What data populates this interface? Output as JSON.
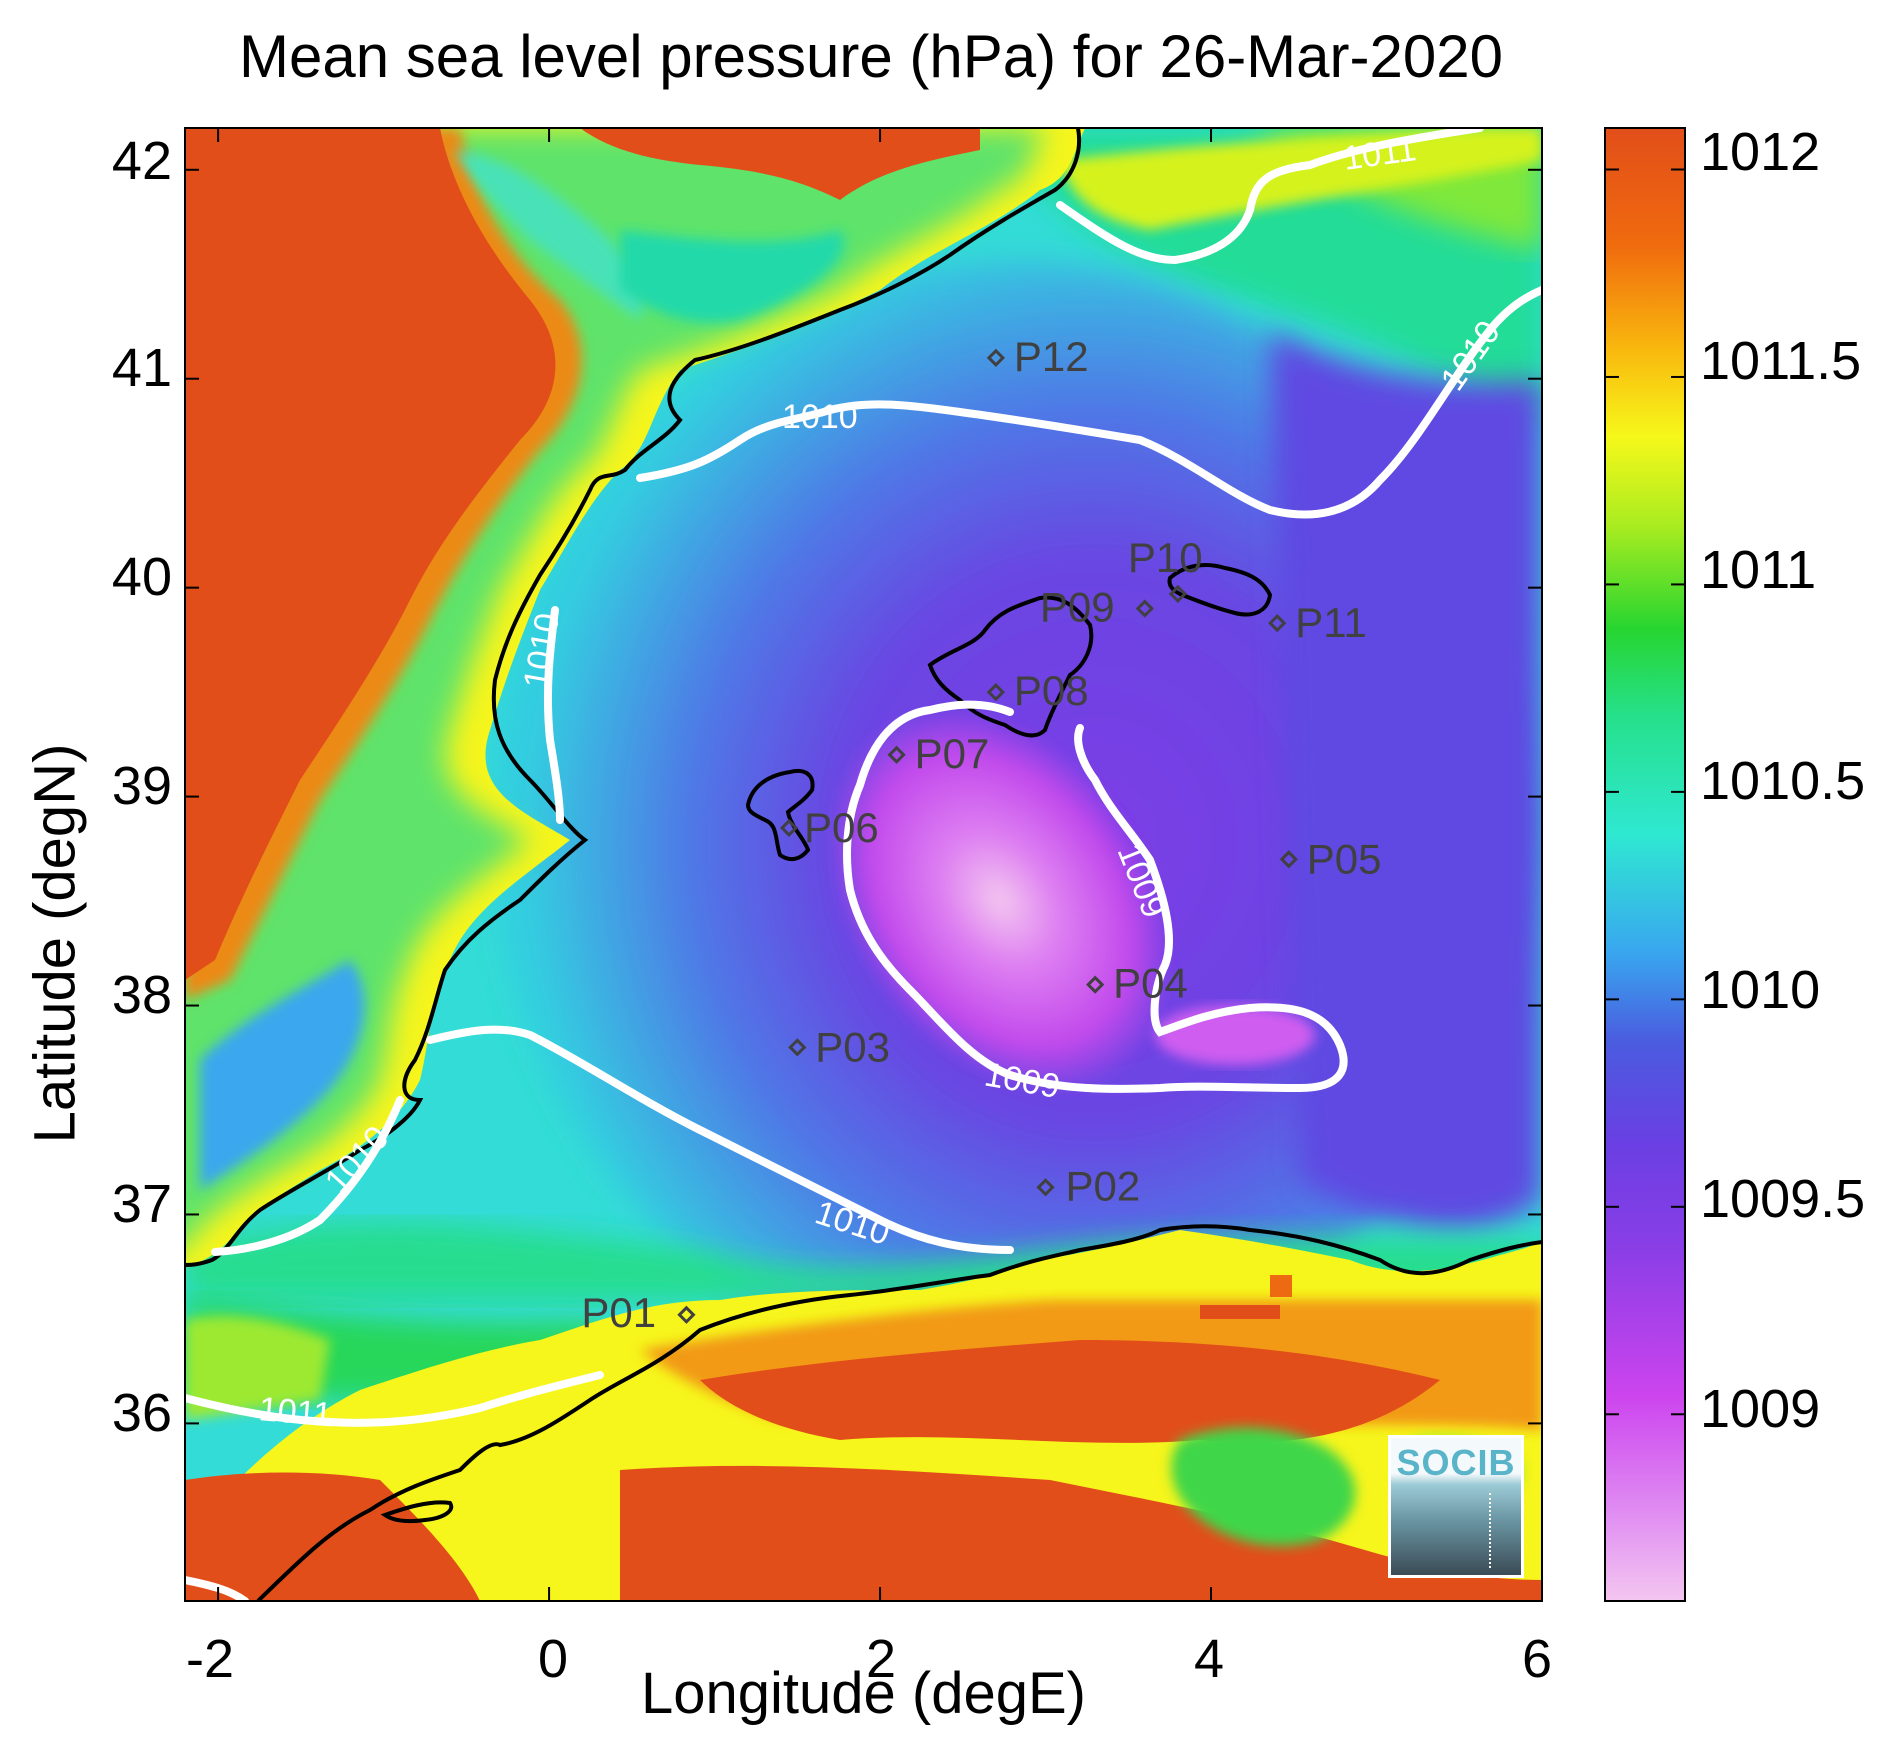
{
  "title": "Mean sea level pressure (hPa) for 26-Mar-2020",
  "xlabel": "Longitude (degE)",
  "ylabel": "Latitude (degN)",
  "x_ticks": [
    "-2",
    "0",
    "2",
    "4",
    "6"
  ],
  "y_ticks": [
    "42",
    "41",
    "40",
    "39",
    "38",
    "37",
    "36"
  ],
  "colorbar_ticks": [
    "1012",
    "1011.5",
    "1011",
    "1010.5",
    "1010",
    "1009.5",
    "1009"
  ],
  "contour_labels": [
    "1011",
    "1010",
    "1010",
    "1010",
    "1010",
    "1010",
    "1009",
    "1009",
    "1011"
  ],
  "stations": [
    {
      "label": "P01",
      "lon": 0.83,
      "lat": 36.52
    },
    {
      "label": "P02",
      "lon": 3.0,
      "lat": 37.13
    },
    {
      "label": "P03",
      "lon": 1.5,
      "lat": 37.8
    },
    {
      "label": "P04",
      "lon": 3.3,
      "lat": 38.1
    },
    {
      "label": "P05",
      "lon": 4.47,
      "lat": 38.7
    },
    {
      "label": "P06",
      "lon": 1.45,
      "lat": 38.85
    },
    {
      "label": "P07",
      "lon": 2.1,
      "lat": 39.2
    },
    {
      "label": "P08",
      "lon": 2.7,
      "lat": 39.5
    },
    {
      "label": "P09",
      "lon": 3.6,
      "lat": 39.9
    },
    {
      "label": "P10",
      "lon": 3.8,
      "lat": 39.97
    },
    {
      "label": "P11",
      "lon": 4.4,
      "lat": 39.83
    },
    {
      "label": "P12",
      "lon": 2.7,
      "lat": 41.1
    }
  ],
  "logo_text": "SOCIB",
  "chart_data": {
    "type": "heatmap",
    "title": "Mean sea level pressure (hPa) for 26-Mar-2020",
    "xlabel": "Longitude (degE)",
    "ylabel": "Latitude (degN)",
    "xlim": [
      -2.2,
      6.0
    ],
    "ylim": [
      35.15,
      42.2
    ],
    "colorbar_range": [
      1008.55,
      1012.1
    ],
    "colorbar_ticks": [
      1009,
      1009.5,
      1010,
      1010.5,
      1011,
      1011.5,
      1012
    ],
    "colormap": [
      "#f3c6f0",
      "#cc44ee",
      "#7a3de6",
      "#4a5cdf",
      "#39b0ef",
      "#2fe8d2",
      "#26e08c",
      "#27d530",
      "#a9ec20",
      "#f6f81a",
      "#f9b80e",
      "#f06b0e",
      "#e24e1a"
    ],
    "contour_levels": [
      1009,
      1010,
      1011
    ],
    "grid": false,
    "low_center": {
      "lon": 2.9,
      "lat": 38.6,
      "value": 1008.6
    },
    "stations": [
      "P01",
      "P02",
      "P03",
      "P04",
      "P05",
      "P06",
      "P07",
      "P08",
      "P09",
      "P10",
      "P11",
      "P12"
    ]
  }
}
